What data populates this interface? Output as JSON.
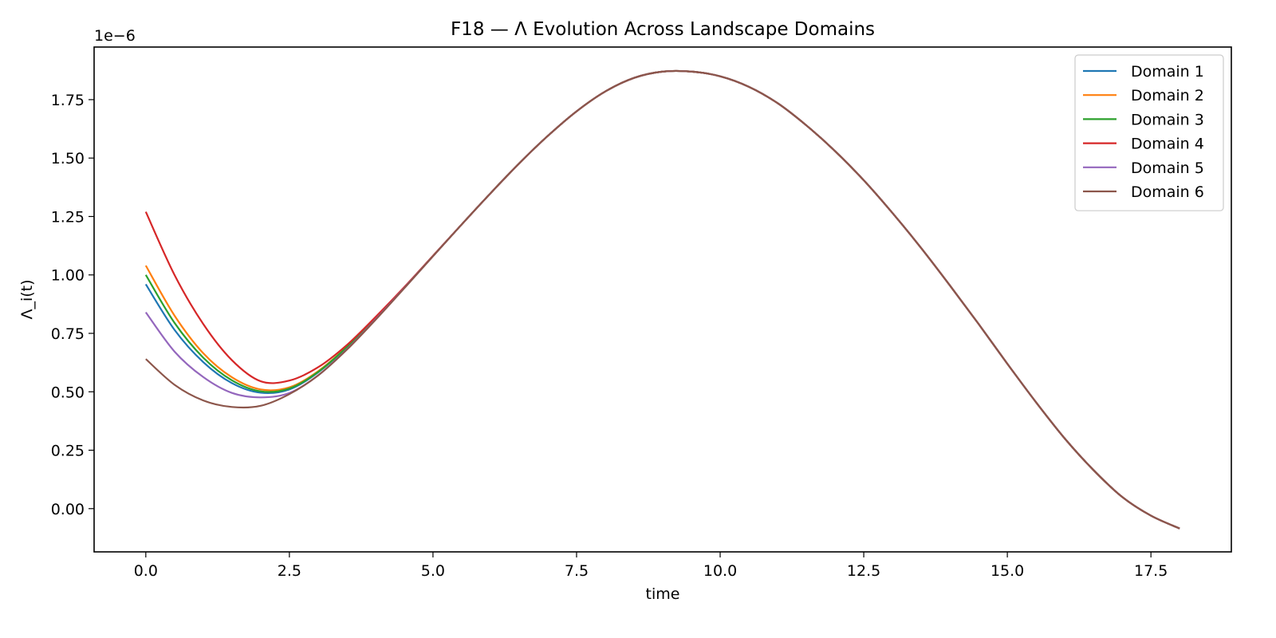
{
  "chart_data": {
    "type": "line",
    "title": "F18 — Λ Evolution Across Landscape Domains",
    "xlabel": "time",
    "ylabel": "Λ_i(t)",
    "y_offset_label": "1e−6",
    "y_scale_factor": 1e-06,
    "xlim": [
      -0.9,
      18.9
    ],
    "ylim": [
      -0.185,
      1.975
    ],
    "xticks": [
      0.0,
      2.5,
      5.0,
      7.5,
      10.0,
      12.5,
      15.0,
      17.5
    ],
    "xtick_labels": [
      "0.0",
      "2.5",
      "5.0",
      "7.5",
      "10.0",
      "12.5",
      "15.0",
      "17.5"
    ],
    "yticks": [
      0.0,
      0.25,
      0.5,
      0.75,
      1.0,
      1.25,
      1.5,
      1.75
    ],
    "ytick_labels": [
      "0.00",
      "0.25",
      "0.50",
      "0.75",
      "1.00",
      "1.25",
      "1.50",
      "1.75"
    ],
    "grid": false,
    "legend_position": "top-right",
    "x": [
      0.0,
      0.5,
      1.0,
      1.5,
      2.0,
      2.5,
      3.0,
      3.5,
      4.0,
      4.5,
      5.0,
      5.5,
      6.0,
      6.5,
      7.0,
      7.5,
      8.0,
      8.5,
      9.0,
      9.5,
      10.0,
      10.5,
      11.0,
      11.5,
      12.0,
      12.5,
      13.0,
      13.5,
      14.0,
      14.5,
      15.0,
      15.5,
      16.0,
      16.5,
      17.0,
      17.5,
      18.0
    ],
    "series": [
      {
        "name": "Domain 1",
        "color": "#1f77b4",
        "values": [
          0.96,
          0.765,
          0.627,
          0.537,
          0.496,
          0.51,
          0.583,
          0.69,
          0.815,
          0.946,
          1.081,
          1.216,
          1.349,
          1.477,
          1.595,
          1.7,
          1.785,
          1.843,
          1.87,
          1.87,
          1.85,
          1.805,
          1.735,
          1.64,
          1.53,
          1.405,
          1.265,
          1.115,
          0.955,
          0.79,
          0.62,
          0.455,
          0.3,
          0.165,
          0.05,
          -0.03,
          -0.085
        ]
      },
      {
        "name": "Domain 2",
        "color": "#ff7f0e",
        "values": [
          1.04,
          0.826,
          0.665,
          0.562,
          0.51,
          0.519,
          0.588,
          0.692,
          0.816,
          0.946,
          1.081,
          1.216,
          1.349,
          1.477,
          1.595,
          1.7,
          1.785,
          1.843,
          1.87,
          1.87,
          1.85,
          1.805,
          1.735,
          1.64,
          1.53,
          1.405,
          1.265,
          1.115,
          0.955,
          0.79,
          0.62,
          0.455,
          0.3,
          0.165,
          0.05,
          -0.03,
          -0.085
        ]
      },
      {
        "name": "Domain 3",
        "color": "#2ca02c",
        "values": [
          1.0,
          0.795,
          0.646,
          0.549,
          0.502,
          0.514,
          0.585,
          0.691,
          0.815,
          0.946,
          1.081,
          1.216,
          1.349,
          1.477,
          1.595,
          1.7,
          1.785,
          1.843,
          1.87,
          1.87,
          1.85,
          1.805,
          1.735,
          1.64,
          1.53,
          1.405,
          1.265,
          1.115,
          0.955,
          0.79,
          0.62,
          0.455,
          0.3,
          0.165,
          0.05,
          -0.03,
          -0.085
        ]
      },
      {
        "name": "Domain 4",
        "color": "#d62728",
        "values": [
          1.27,
          1.0,
          0.79,
          0.635,
          0.545,
          0.548,
          0.605,
          0.7,
          0.82,
          0.948,
          1.082,
          1.216,
          1.349,
          1.477,
          1.595,
          1.7,
          1.785,
          1.843,
          1.87,
          1.87,
          1.85,
          1.805,
          1.735,
          1.64,
          1.53,
          1.405,
          1.265,
          1.115,
          0.955,
          0.79,
          0.62,
          0.455,
          0.3,
          0.165,
          0.05,
          -0.03,
          -0.085
        ]
      },
      {
        "name": "Domain 5",
        "color": "#9467bd",
        "values": [
          0.84,
          0.672,
          0.563,
          0.495,
          0.476,
          0.495,
          0.57,
          0.682,
          0.81,
          0.944,
          1.08,
          1.216,
          1.349,
          1.477,
          1.595,
          1.7,
          1.785,
          1.843,
          1.87,
          1.87,
          1.85,
          1.805,
          1.735,
          1.64,
          1.53,
          1.405,
          1.265,
          1.115,
          0.955,
          0.79,
          0.62,
          0.455,
          0.3,
          0.165,
          0.05,
          -0.03,
          -0.085
        ]
      },
      {
        "name": "Domain 6",
        "color": "#8c564b",
        "values": [
          0.64,
          0.53,
          0.463,
          0.435,
          0.44,
          0.49,
          0.57,
          0.68,
          0.808,
          0.943,
          1.08,
          1.216,
          1.349,
          1.477,
          1.595,
          1.7,
          1.785,
          1.843,
          1.87,
          1.87,
          1.85,
          1.805,
          1.735,
          1.64,
          1.53,
          1.405,
          1.265,
          1.115,
          0.955,
          0.79,
          0.62,
          0.455,
          0.3,
          0.165,
          0.05,
          -0.03,
          -0.085
        ]
      }
    ]
  }
}
